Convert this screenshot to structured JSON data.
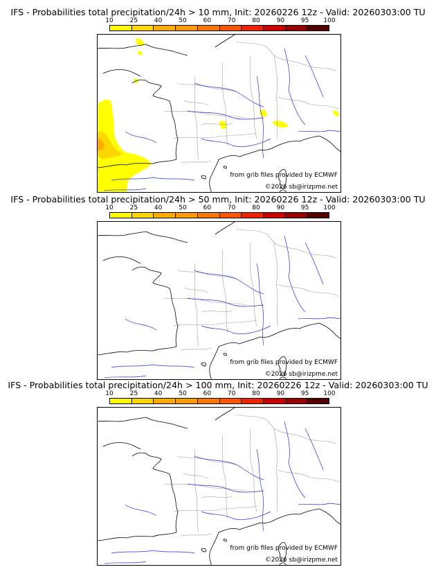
{
  "panels": [
    {
      "title": "IFS - Probabilities total precipitation/24h > 10 mm, Init: 20260226 12z - Valid: 20260303:00 TU",
      "has_precip": true
    },
    {
      "title": "IFS - Probabilities total precipitation/24h > 50 mm, Init: 20260226 12z - Valid: 20260303:00 TU",
      "has_precip": false
    },
    {
      "title": "IFS - Probabilities total precipitation/24h > 100 mm, Init: 20260226 12z - Valid: 20260303:00 TU",
      "has_precip": false
    }
  ],
  "legend": {
    "ticks": [
      "10",
      "25",
      "40",
      "50",
      "60",
      "70",
      "80",
      "90",
      "95",
      "100"
    ],
    "colors": [
      "#ffff00",
      "#ffd700",
      "#ffaa00",
      "#ff9900",
      "#ff7700",
      "#ff5500",
      "#ee2200",
      "#cc0000",
      "#990000",
      "#550000"
    ]
  },
  "credits": {
    "source": "from grib files provided by ECMWF",
    "copyright": "©2026 sb@irizpme.net"
  },
  "colors": {
    "coast": "#000000",
    "borders": "#a0a0a0",
    "rivers": "#2a2aee",
    "precip_light": "#ffff00",
    "precip_mid": "#ffd700",
    "precip_high": "#ffaa00"
  }
}
